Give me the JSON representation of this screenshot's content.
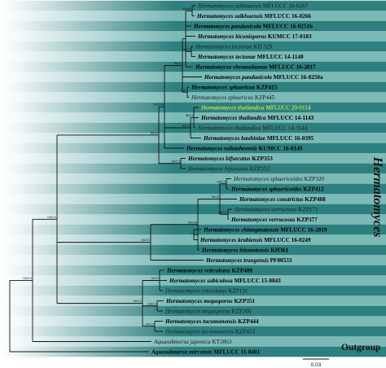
{
  "genus_label": "Hermatomyces",
  "outgroup_label": "Outgroup",
  "scale_label": "0.03",
  "colors": {
    "band_dark": "#2e807f",
    "band_light": "#7cbab8",
    "highlight_text": "#ffff33",
    "line": "#111111"
  },
  "taxa": [
    {
      "genus": "Hermatomyces",
      "epithet": "saikhuensis",
      "voucher": "MFLUCC 16-0267",
      "bold": false,
      "highlight": false
    },
    {
      "genus": "Hermatomyces",
      "epithet": "saikhuensis",
      "voucher": "MFLUCC 16-0266",
      "bold": true,
      "highlight": false
    },
    {
      "genus": "Hermatomyces",
      "epithet": "pandanicola",
      "voucher": "MFLUCC 16-0251b",
      "bold": true,
      "highlight": false
    },
    {
      "genus": "Hermatomyces",
      "epithet": "biconisporus",
      "voucher": "KUMCC 17-0183",
      "bold": true,
      "highlight": false
    },
    {
      "genus": "Hermatomyces",
      "epithet": "tectonae",
      "voucher": "KH 329",
      "bold": false,
      "highlight": false
    },
    {
      "genus": "Hermatomyces",
      "epithet": "tectonae",
      "voucher": "MFLUCC 14-1140",
      "bold": true,
      "highlight": false
    },
    {
      "genus": "Hermatomyces",
      "epithet": "chromolaenae",
      "voucher": "MFLUCC 16-2817",
      "bold": true,
      "highlight": false
    },
    {
      "genus": "Hermatomyces",
      "epithet": "pandanicola",
      "voucher": "MFLUCC 16-0250a",
      "bold": true,
      "highlight": false
    },
    {
      "genus": "Hermatomyces",
      "epithet": "sphaericus",
      "voucher": "KZP415",
      "bold": true,
      "highlight": false
    },
    {
      "genus": "Hermatomyces",
      "epithet": "sphaericus",
      "voucher": "KZP445",
      "bold": false,
      "highlight": false
    },
    {
      "genus": "Hermatomyces",
      "epithet": "thailandica",
      "voucher": "MFLUCC 20-0114",
      "bold": false,
      "highlight": true
    },
    {
      "genus": "Hermatomyces",
      "epithet": "thailandica",
      "voucher": "MFLUCC 14-1143",
      "bold": true,
      "highlight": false
    },
    {
      "genus": "Hermatomyces",
      "epithet": "thailandica",
      "voucher": "MFLUCC 14-1144",
      "bold": false,
      "highlight": false
    },
    {
      "genus": "Hermatomyces",
      "epithet": "bauhiniae",
      "voucher": "MFLUCC 16-0395",
      "bold": true,
      "highlight": false
    },
    {
      "genus": "Hermatomyces",
      "epithet": "nabanheensis",
      "voucher": "KUMCC 16-0149",
      "bold": true,
      "highlight": false
    },
    {
      "genus": "Hermatomyces",
      "epithet": "bifurcatus",
      "voucher": "KZP353",
      "bold": true,
      "highlight": false
    },
    {
      "genus": "Hermatomyces",
      "epithet": "bifurcatus",
      "voucher": "KZP352",
      "bold": false,
      "highlight": false
    },
    {
      "genus": "Hermatomyces",
      "epithet": "sphaericoides",
      "voucher": "KZP320",
      "bold": false,
      "highlight": false
    },
    {
      "genus": "Hermatomyces",
      "epithet": "sphaericoides",
      "voucher": "KZP412",
      "bold": true,
      "highlight": false
    },
    {
      "genus": "Hermatomyces",
      "epithet": "constrictus",
      "voucher": "KZP408",
      "bold": true,
      "highlight": false
    },
    {
      "genus": "Hermatomyces",
      "epithet": "verrucosus",
      "voucher": "KZP171",
      "bold": false,
      "highlight": false
    },
    {
      "genus": "Hermatomyces",
      "epithet": "verrucosus",
      "voucher": "KZP377",
      "bold": true,
      "highlight": false
    },
    {
      "genus": "Hermatomyces",
      "epithet": "chiangmaiensis",
      "voucher": "MFLUCC 16-2819",
      "bold": true,
      "highlight": false
    },
    {
      "genus": "Hermatomyces",
      "epithet": "krabiensis",
      "voucher": "MFLUCC 16-0249",
      "bold": true,
      "highlight": false
    },
    {
      "genus": "Hermatomyces",
      "epithet": "iriomotensis",
      "voucher": "KH361",
      "bold": true,
      "highlight": false
    },
    {
      "genus": "Hermatomyces",
      "epithet": "trangensis",
      "voucher": "PF00533",
      "bold": true,
      "highlight": false
    },
    {
      "genus": "Hermatomyces",
      "epithet": "reticulatus",
      "voucher": "KZP409",
      "bold": true,
      "highlight": false
    },
    {
      "genus": "Hermatomyces",
      "epithet": "subiculosa",
      "voucher": "MFLUCC 15-0843",
      "bold": true,
      "highlight": false
    },
    {
      "genus": "Hermatomyces",
      "epithet": "reticulatus",
      "voucher": "KZP191",
      "bold": false,
      "highlight": false
    },
    {
      "genus": "Hermatomyces",
      "epithet": "megasporus",
      "voucher": "KZP351",
      "bold": true,
      "highlight": false
    },
    {
      "genus": "Hermatomyces",
      "epithet": "megasporus",
      "voucher": "KZP300",
      "bold": false,
      "highlight": false
    },
    {
      "genus": "Hermatomyces",
      "epithet": "tucumanensis",
      "voucher": "KZP444",
      "bold": true,
      "highlight": false
    },
    {
      "genus": "Hermatomyces",
      "epithet": "tucumanensis",
      "voucher": "KZP453",
      "bold": false,
      "highlight": false
    },
    {
      "genus": "Aquasubmersa",
      "epithet": "japonica",
      "voucher": "KT2863",
      "bold": false,
      "highlight": false
    },
    {
      "genus": "Aquasubmersa",
      "epithet": "mircensis",
      "voucher": "MFLUCC 11-0401",
      "bold": true,
      "highlight": false
    }
  ],
  "support_values": [
    "100/1.0",
    "100/1.0",
    "85/1.0",
    "100/0.99",
    "99/1.0",
    "82/0.99",
    "96/1.0",
    "-/0.97",
    "89/1.0",
    "98/1.0",
    "100/1.0",
    "100/1.0",
    "86/0.99",
    "96/1.0",
    "100/1.0",
    "100/1.0",
    "-/-",
    "100/1.0",
    "91/1.0",
    "100/1.0",
    "100/1.0"
  ]
}
